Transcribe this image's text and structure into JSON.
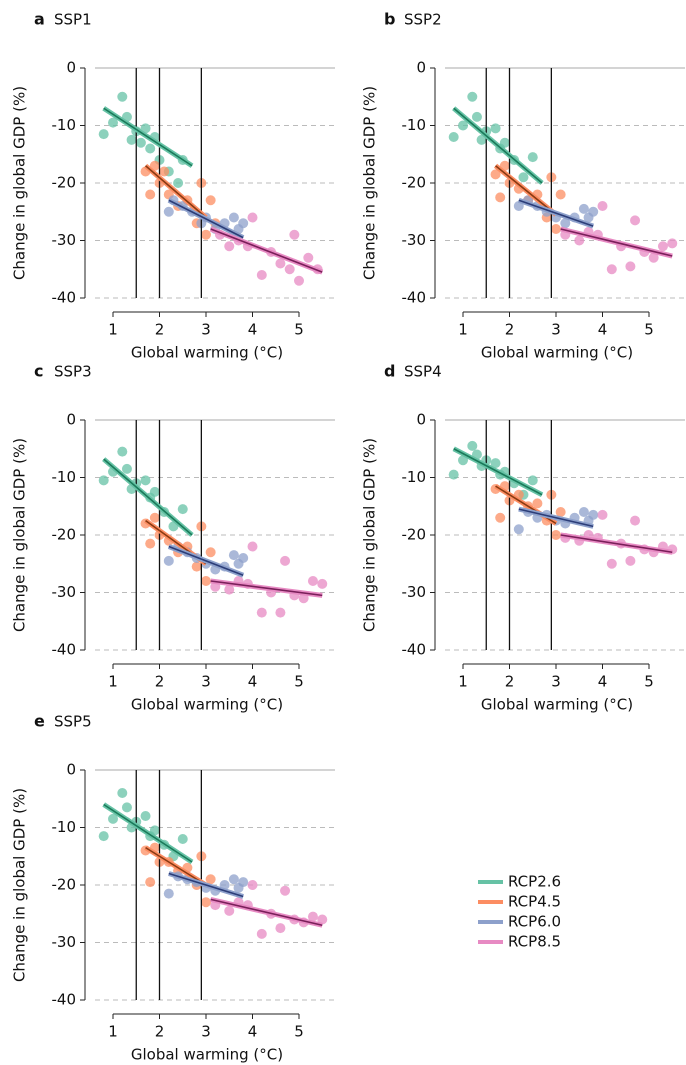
{
  "legend": [
    {
      "name": "RCP2.6",
      "color": "#66c2a5"
    },
    {
      "name": "RCP4.5",
      "color": "#fc8d62"
    },
    {
      "name": "RCP6.0",
      "color": "#8da0cb"
    },
    {
      "name": "RCP8.5",
      "color": "#e78ac3"
    }
  ],
  "chart_data": [
    {
      "type": "scatter",
      "letter": "a",
      "title": "SSP1",
      "xlabel": "Global warming (°C)",
      "ylabel": "Change in global GDP (%)",
      "xlim": [
        0.6,
        5.6
      ],
      "ylim": [
        -40,
        0
      ],
      "xticks": [
        1,
        2,
        3,
        4,
        5
      ],
      "yticks": [
        0,
        -10,
        -20,
        -30,
        -40
      ],
      "vlines": [
        1.5,
        2,
        2.9
      ],
      "series": [
        {
          "color": "#66c2a5",
          "line_color": "#1a7a5a",
          "x": [
            0.8,
            1.0,
            1.2,
            1.3,
            1.4,
            1.5,
            1.6,
            1.7,
            1.8,
            1.9,
            2.0,
            2.2,
            2.4,
            2.5
          ],
          "values": [
            -11.5,
            -9.5,
            -5,
            -8.5,
            -12.5,
            -11,
            -13,
            -10.5,
            -14,
            -12,
            -16,
            -18,
            -20,
            -16
          ],
          "fit_x": [
            0.8,
            2.7
          ],
          "fit_y": [
            -7,
            -17
          ]
        },
        {
          "color": "#fc8d62",
          "line_color": "#8a3a12",
          "x": [
            1.7,
            1.8,
            1.9,
            2.0,
            2.1,
            2.2,
            2.4,
            2.6,
            2.8,
            2.9,
            3.0,
            3.1,
            3.2
          ],
          "values": [
            -18,
            -22,
            -17,
            -20,
            -18,
            -22,
            -24,
            -23,
            -27,
            -20,
            -29,
            -23,
            -27
          ],
          "fit_x": [
            1.7,
            3.0
          ],
          "fit_y": [
            -17,
            -26
          ]
        },
        {
          "color": "#8da0cb",
          "line_color": "#2c3d78",
          "x": [
            2.2,
            2.3,
            2.5,
            2.7,
            2.9,
            3.0,
            3.2,
            3.4,
            3.6,
            3.7,
            3.8
          ],
          "values": [
            -25,
            -23,
            -24,
            -25,
            -27,
            -26,
            -28,
            -27,
            -26,
            -28,
            -27
          ],
          "fit_x": [
            2.2,
            3.8
          ],
          "fit_y": [
            -23,
            -29.5
          ]
        },
        {
          "color": "#e78ac3",
          "line_color": "#7a1f5a",
          "x": [
            3.3,
            3.5,
            3.7,
            3.9,
            4.0,
            4.2,
            4.4,
            4.6,
            4.8,
            4.9,
            5.0,
            5.2,
            5.4
          ],
          "values": [
            -29,
            -31,
            -30,
            -31,
            -26,
            -36,
            -32,
            -34,
            -35,
            -29,
            -37,
            -33,
            -35
          ],
          "fit_x": [
            3.1,
            5.5
          ],
          "fit_y": [
            -28,
            -35.5
          ]
        }
      ]
    },
    {
      "type": "scatter",
      "letter": "b",
      "title": "SSP2",
      "xlabel": "Global warming (°C)",
      "ylabel": "Change in global GDP (%)",
      "xlim": [
        0.6,
        5.6
      ],
      "ylim": [
        -40,
        0
      ],
      "xticks": [
        1,
        2,
        3,
        4,
        5
      ],
      "yticks": [
        0,
        -10,
        -20,
        -30,
        -40
      ],
      "vlines": [
        1.5,
        2,
        2.9
      ],
      "series": [
        {
          "color": "#66c2a5",
          "line_color": "#1a7a5a",
          "x": [
            0.8,
            1.0,
            1.2,
            1.3,
            1.4,
            1.5,
            1.7,
            1.8,
            1.9,
            2.1,
            2.3,
            2.5
          ],
          "values": [
            -12,
            -10,
            -5,
            -8.5,
            -12.5,
            -11,
            -10.5,
            -14,
            -13,
            -16,
            -19,
            -15.5
          ],
          "fit_x": [
            0.8,
            2.7
          ],
          "fit_y": [
            -7,
            -20
          ]
        },
        {
          "color": "#fc8d62",
          "line_color": "#8a3a12",
          "x": [
            1.7,
            1.8,
            1.9,
            2.0,
            2.2,
            2.4,
            2.6,
            2.8,
            2.9,
            3.0,
            3.1
          ],
          "values": [
            -18.5,
            -22.5,
            -17,
            -20,
            -21,
            -23,
            -22,
            -26,
            -19,
            -28,
            -22
          ],
          "fit_x": [
            1.7,
            3.0
          ],
          "fit_y": [
            -17,
            -25.5
          ]
        },
        {
          "color": "#8da0cb",
          "line_color": "#2c3d78",
          "x": [
            2.2,
            2.4,
            2.6,
            2.8,
            3.0,
            3.2,
            3.4,
            3.6,
            3.7,
            3.8
          ],
          "values": [
            -24,
            -23,
            -24,
            -25,
            -26,
            -27,
            -26,
            -24.5,
            -26,
            -25
          ],
          "fit_x": [
            2.2,
            3.8
          ],
          "fit_y": [
            -23,
            -27.5
          ]
        },
        {
          "color": "#e78ac3",
          "line_color": "#7a1f5a",
          "x": [
            3.2,
            3.5,
            3.7,
            3.9,
            4.0,
            4.2,
            4.4,
            4.6,
            4.7,
            4.9,
            5.1,
            5.3,
            5.5
          ],
          "values": [
            -29,
            -30,
            -28.5,
            -29,
            -24,
            -35,
            -31,
            -34.5,
            -26.5,
            -32,
            -33,
            -31,
            -30.5
          ],
          "fit_x": [
            3.1,
            5.5
          ],
          "fit_y": [
            -28,
            -32.7
          ]
        }
      ]
    },
    {
      "type": "scatter",
      "letter": "c",
      "title": "SSP3",
      "xlabel": "Global warming (°C)",
      "ylabel": "Change in global GDP (%)",
      "xlim": [
        0.6,
        5.6
      ],
      "ylim": [
        -40,
        0
      ],
      "xticks": [
        1,
        2,
        3,
        4,
        5
      ],
      "yticks": [
        0,
        -10,
        -20,
        -30,
        -40
      ],
      "vlines": [
        1.5,
        2,
        2.9
      ],
      "series": [
        {
          "color": "#66c2a5",
          "line_color": "#1a7a5a",
          "x": [
            0.8,
            1.0,
            1.2,
            1.3,
            1.4,
            1.5,
            1.7,
            1.8,
            1.9,
            2.1,
            2.3,
            2.5
          ],
          "values": [
            -10.5,
            -9,
            -5.5,
            -8.5,
            -12,
            -11,
            -10.5,
            -13.5,
            -12.5,
            -16,
            -18.5,
            -15.5
          ],
          "fit_x": [
            0.8,
            2.7
          ],
          "fit_y": [
            -6.8,
            -20
          ]
        },
        {
          "color": "#fc8d62",
          "line_color": "#8a3a12",
          "x": [
            1.7,
            1.8,
            1.9,
            2.0,
            2.2,
            2.4,
            2.6,
            2.8,
            2.9,
            3.0,
            3.1
          ],
          "values": [
            -18,
            -21.5,
            -17,
            -20,
            -21,
            -23,
            -22,
            -25.5,
            -18.5,
            -28,
            -23
          ],
          "fit_x": [
            1.7,
            3.0
          ],
          "fit_y": [
            -17.5,
            -25
          ]
        },
        {
          "color": "#8da0cb",
          "line_color": "#2c3d78",
          "x": [
            2.2,
            2.4,
            2.6,
            2.8,
            3.0,
            3.2,
            3.4,
            3.6,
            3.7,
            3.8
          ],
          "values": [
            -24.5,
            -22,
            -23,
            -24,
            -25,
            -26,
            -25.5,
            -23.5,
            -25,
            -24
          ],
          "fit_x": [
            2.2,
            3.8
          ],
          "fit_y": [
            -22,
            -27
          ]
        },
        {
          "color": "#e78ac3",
          "line_color": "#7a1f5a",
          "x": [
            3.2,
            3.5,
            3.7,
            3.9,
            4.0,
            4.2,
            4.4,
            4.6,
            4.7,
            4.9,
            5.1,
            5.3,
            5.5
          ],
          "values": [
            -29,
            -29.5,
            -28,
            -28.5,
            -22,
            -33.5,
            -30,
            -33.5,
            -24.5,
            -30.5,
            -31,
            -28,
            -28.5
          ],
          "fit_x": [
            3.1,
            5.5
          ],
          "fit_y": [
            -28,
            -30.5
          ]
        }
      ]
    },
    {
      "type": "scatter",
      "letter": "d",
      "title": "SSP4",
      "xlabel": "Global warming (°C)",
      "ylabel": "Change in global GDP (%)",
      "xlim": [
        0.6,
        5.6
      ],
      "ylim": [
        -40,
        0
      ],
      "xticks": [
        1,
        2,
        3,
        4,
        5
      ],
      "yticks": [
        0,
        -10,
        -20,
        -30,
        -40
      ],
      "vlines": [
        1.5,
        2,
        2.9
      ],
      "series": [
        {
          "color": "#66c2a5",
          "line_color": "#1a7a5a",
          "x": [
            0.8,
            1.0,
            1.2,
            1.3,
            1.4,
            1.5,
            1.7,
            1.8,
            1.9,
            2.1,
            2.3,
            2.5
          ],
          "values": [
            -9.5,
            -7,
            -4.5,
            -6,
            -8,
            -7,
            -7.5,
            -9.5,
            -9,
            -11,
            -13,
            -10.5
          ],
          "fit_x": [
            0.8,
            2.7
          ],
          "fit_y": [
            -5,
            -13
          ]
        },
        {
          "color": "#fc8d62",
          "line_color": "#8a3a12",
          "x": [
            1.7,
            1.8,
            1.9,
            2.0,
            2.2,
            2.4,
            2.6,
            2.8,
            2.9,
            3.0,
            3.1
          ],
          "values": [
            -12,
            -17,
            -11.5,
            -14,
            -13,
            -15,
            -14.5,
            -17.5,
            -13,
            -20,
            -16
          ],
          "fit_x": [
            1.7,
            3.0
          ],
          "fit_y": [
            -11.5,
            -18
          ]
        },
        {
          "color": "#8da0cb",
          "line_color": "#2c3d78",
          "x": [
            2.2,
            2.4,
            2.6,
            2.8,
            3.0,
            3.2,
            3.4,
            3.6,
            3.7,
            3.8
          ],
          "values": [
            -19,
            -16,
            -17,
            -16.5,
            -17.5,
            -18,
            -17,
            -16,
            -17.5,
            -16.5
          ],
          "fit_x": [
            2.2,
            3.8
          ],
          "fit_y": [
            -15.5,
            -18.5
          ]
        },
        {
          "color": "#e78ac3",
          "line_color": "#7a1f5a",
          "x": [
            3.2,
            3.5,
            3.7,
            3.9,
            4.0,
            4.2,
            4.4,
            4.6,
            4.7,
            4.9,
            5.1,
            5.3,
            5.5
          ],
          "values": [
            -20.5,
            -21,
            -20,
            -20.5,
            -16.5,
            -25,
            -21.5,
            -24.5,
            -17.5,
            -22.5,
            -23,
            -22,
            -22.5
          ],
          "fit_x": [
            3.1,
            5.5
          ],
          "fit_y": [
            -20,
            -23
          ]
        }
      ]
    },
    {
      "type": "scatter",
      "letter": "e",
      "title": "SSP5",
      "xlabel": "Global warming (°C)",
      "ylabel": "Change in global GDP (%)",
      "xlim": [
        0.6,
        5.6
      ],
      "ylim": [
        -40,
        0
      ],
      "xticks": [
        1,
        2,
        3,
        4,
        5
      ],
      "yticks": [
        0,
        -10,
        -20,
        -30,
        -40
      ],
      "vlines": [
        1.5,
        2,
        2.9
      ],
      "series": [
        {
          "color": "#66c2a5",
          "line_color": "#1a7a5a",
          "x": [
            0.8,
            1.0,
            1.2,
            1.3,
            1.4,
            1.5,
            1.7,
            1.8,
            1.9,
            2.1,
            2.3,
            2.5
          ],
          "values": [
            -11.5,
            -8.5,
            -4,
            -6.5,
            -10,
            -9,
            -8,
            -11.5,
            -10.5,
            -13,
            -15,
            -12
          ],
          "fit_x": [
            0.8,
            2.7
          ],
          "fit_y": [
            -6,
            -16
          ]
        },
        {
          "color": "#fc8d62",
          "line_color": "#8a3a12",
          "x": [
            1.7,
            1.8,
            1.9,
            2.0,
            2.2,
            2.4,
            2.6,
            2.8,
            2.9,
            3.0,
            3.1
          ],
          "values": [
            -14,
            -19.5,
            -13.5,
            -16,
            -16,
            -17.5,
            -17,
            -20,
            -15,
            -23,
            -19
          ],
          "fit_x": [
            1.7,
            3.0
          ],
          "fit_y": [
            -13.5,
            -20
          ]
        },
        {
          "color": "#8da0cb",
          "line_color": "#2c3d78",
          "x": [
            2.2,
            2.4,
            2.6,
            2.8,
            3.0,
            3.2,
            3.4,
            3.6,
            3.7,
            3.8
          ],
          "values": [
            -21.5,
            -18.5,
            -19,
            -19.5,
            -20.5,
            -21,
            -20,
            -19,
            -20.5,
            -19.5
          ],
          "fit_x": [
            2.2,
            3.8
          ],
          "fit_y": [
            -18,
            -22
          ]
        },
        {
          "color": "#e78ac3",
          "line_color": "#7a1f5a",
          "x": [
            3.2,
            3.5,
            3.7,
            3.9,
            4.0,
            4.2,
            4.4,
            4.6,
            4.7,
            4.9,
            5.1,
            5.3,
            5.5
          ],
          "values": [
            -23.5,
            -24.5,
            -23,
            -23.5,
            -20,
            -28.5,
            -25,
            -27.5,
            -21,
            -26,
            -26.5,
            -25.5,
            -26
          ],
          " fit_x": null,
          "fit_x": [
            3.1,
            5.5
          ],
          "fit_y": [
            -22.5,
            -27
          ]
        }
      ]
    }
  ]
}
